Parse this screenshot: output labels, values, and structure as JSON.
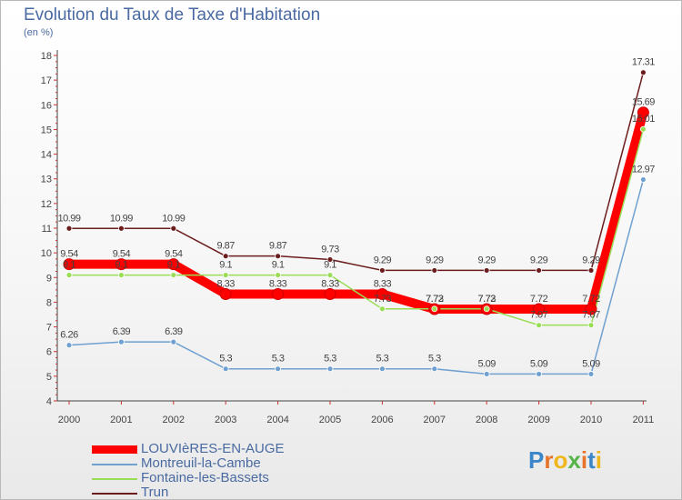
{
  "header": {
    "title": "Evolution du Taux de Taxe d'Habitation",
    "subtitle": "(en %)"
  },
  "logo": {
    "text": "Proxiti"
  },
  "chart_data": {
    "type": "line",
    "title": "Evolution du Taux de Taxe d'Habitation",
    "subtitle": "(en %)",
    "x": [
      "2000",
      "2001",
      "2002",
      "2003",
      "2004",
      "2005",
      "2006",
      "2007",
      "2008",
      "2009",
      "2010",
      "2011"
    ],
    "ylim": [
      4,
      18
    ],
    "yticks": [
      "4",
      "5",
      "6",
      "7",
      "8",
      "9",
      "10",
      "11",
      "12",
      "13",
      "14",
      "15",
      "16",
      "17",
      "18"
    ],
    "grid": false,
    "legend_position": "bottom-left",
    "series": [
      {
        "name": "LOUVIèRES-EN-AUGE",
        "color": "#ff0000",
        "width": 10,
        "marker": 6,
        "values": [
          9.54,
          9.54,
          9.54,
          8.33,
          8.33,
          8.33,
          8.33,
          7.72,
          7.72,
          7.72,
          7.72,
          15.69
        ],
        "labels": [
          "9.54",
          "9.54",
          "9.54",
          "8.33",
          "8.33",
          "8.33",
          "8.33",
          "7.72",
          "7.72",
          "7.72",
          "7.72",
          "15.69"
        ]
      },
      {
        "name": "Montreuil-la-Cambe",
        "color": "#6fa0cf",
        "width": 1.5,
        "marker": 3,
        "values": [
          6.26,
          6.39,
          6.39,
          5.3,
          5.3,
          5.3,
          5.3,
          5.3,
          5.09,
          5.09,
          5.09,
          12.97
        ],
        "labels": [
          "6.26",
          "6.39",
          "6.39",
          "5.3",
          "5.3",
          "5.3",
          "5.3",
          "5.3",
          "5.09",
          "5.09",
          "5.09",
          "12.97"
        ]
      },
      {
        "name": "Fontaine-les-Bassets",
        "color": "#99dd55",
        "width": 1.5,
        "marker": 3,
        "values": [
          9.1,
          9.1,
          9.1,
          9.1,
          9.1,
          9.1,
          7.73,
          7.73,
          7.73,
          7.07,
          7.07,
          15.01
        ],
        "labels": [
          "9.1",
          "9.1",
          "9.1",
          "9.1",
          "9.1",
          "9.1",
          "7.73",
          "7.73",
          "7.73",
          "7.07",
          "7.07",
          "15.01"
        ]
      },
      {
        "name": "Trun",
        "color": "#6b1c1c",
        "width": 1.5,
        "marker": 3,
        "values": [
          10.99,
          10.99,
          10.99,
          9.87,
          9.87,
          9.73,
          9.29,
          9.29,
          9.29,
          9.29,
          9.29,
          17.31
        ],
        "labels": [
          "10.99",
          "10.99",
          "10.99",
          "9.87",
          "9.87",
          "9.73",
          "9.29",
          "9.29",
          "9.29",
          "9.29",
          "9.29",
          "17.31"
        ]
      }
    ],
    "label_color": "#444444",
    "axis_color": "#444444",
    "tick_color": "#cc3333"
  }
}
